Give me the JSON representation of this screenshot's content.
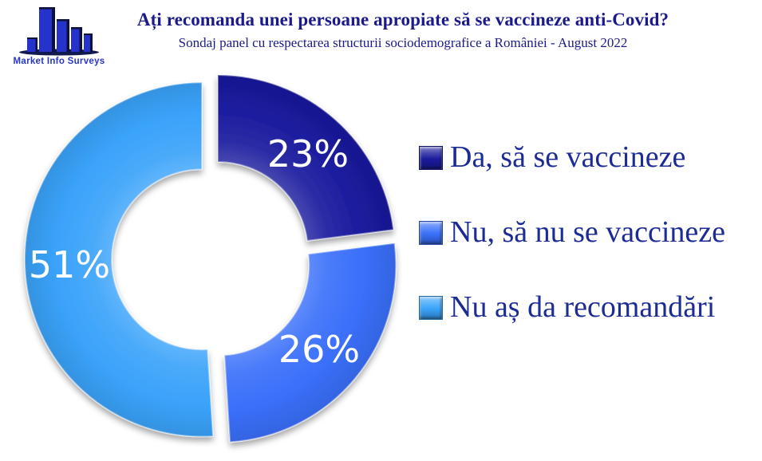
{
  "logo": {
    "text": "Market Info Surveys",
    "building_color": "#2533CC",
    "edge_color": "#0D1238",
    "text_color": "#2736C8"
  },
  "header": {
    "title": "Ați recomanda unei persoane apropiate să se vaccineze anti-Covid?",
    "subtitle": "Sondaj panel cu respectarea structurii sociodemografice a României - August 2022"
  },
  "chart_data": {
    "type": "pie",
    "subtype": "exploded-doughnut",
    "title": "Ați recomanda unei persoane apropiate să se vaccineze anti-Covid?",
    "categories": [
      "Da, să se vaccineze",
      "Nu, să nu se vaccineze",
      "Nu aș da recomandări"
    ],
    "values": [
      23,
      26,
      51
    ],
    "labels": [
      "23%",
      "26%",
      "51%"
    ],
    "colors": [
      "#1B1B9E",
      "#3A6FFA",
      "#3AA3FA"
    ],
    "start_angle_deg": 0,
    "direction": "clockwise",
    "legend_position": "right",
    "label_text_color": "#FFFFFF"
  },
  "style": {
    "legend_text_color": "#1C2C94",
    "title_text_color": "#1A1A8C",
    "background": "#FFFFFF"
  }
}
